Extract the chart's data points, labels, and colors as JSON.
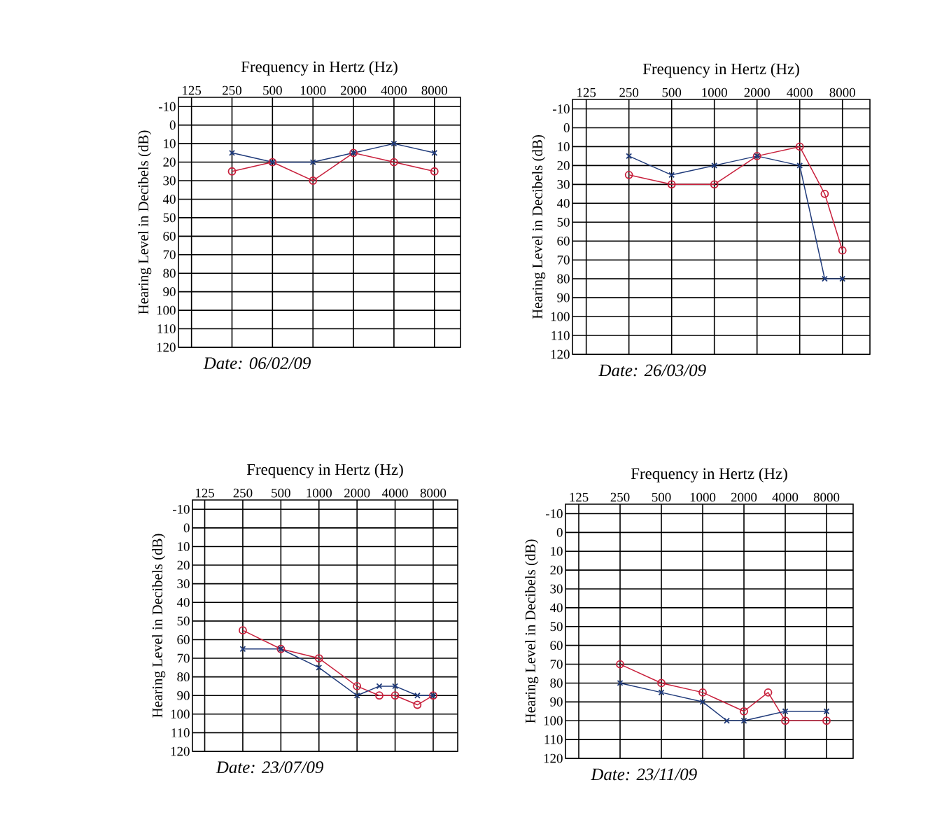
{
  "chart_data": [
    {
      "type": "line",
      "title": "Frequency in Hertz (Hz)",
      "ylabel": "Hearing Level in Decibels (dB)",
      "log": "x",
      "grid": true,
      "xlim": [
        100,
        12500
      ],
      "xticks": [
        125,
        250,
        500,
        1000,
        2000,
        4000,
        8000
      ],
      "ylim": [
        120,
        -15
      ],
      "yticks": [
        -10,
        0,
        10,
        20,
        30,
        40,
        50,
        60,
        70,
        80,
        90,
        100,
        110,
        120
      ],
      "annotations": [
        "Date: 06/02/09"
      ],
      "series": [
        {
          "color": "#c8203c",
          "marker": "circle",
          "x": [
            250,
            500,
            1000,
            2000,
            4000,
            8000
          ],
          "values": [
            25,
            20,
            30,
            15,
            20,
            25
          ]
        },
        {
          "color": "#1f3a7a",
          "marker": "cross",
          "x": [
            250,
            500,
            1000,
            2000,
            4000,
            8000
          ],
          "values": [
            15,
            20,
            20,
            15,
            10,
            15
          ]
        }
      ]
    },
    {
      "type": "line",
      "title": "Frequency in Hertz (Hz)",
      "ylabel": "Hearing Level in Decibels (dB)",
      "log": "x",
      "grid": true,
      "xlim": [
        100,
        12500
      ],
      "xticks": [
        125,
        250,
        500,
        1000,
        2000,
        4000,
        8000
      ],
      "ylim": [
        120,
        -15
      ],
      "yticks": [
        -10,
        0,
        10,
        20,
        30,
        40,
        50,
        60,
        70,
        80,
        90,
        100,
        110,
        120
      ],
      "annotations": [
        "Date: 26/03/09"
      ],
      "series": [
        {
          "color": "#c8203c",
          "marker": "circle",
          "x": [
            250,
            500,
            1000,
            2000,
            4000,
            6000,
            8000
          ],
          "values": [
            25,
            30,
            30,
            15,
            10,
            35,
            65
          ]
        },
        {
          "color": "#1f3a7a",
          "marker": "cross",
          "x": [
            250,
            500,
            1000,
            2000,
            4000,
            6000,
            8000
          ],
          "values": [
            15,
            25,
            20,
            15,
            20,
            80,
            80
          ]
        }
      ]
    },
    {
      "type": "line",
      "title": "Frequency in Hertz (Hz)",
      "ylabel": "Hearing Level in Decibels (dB)",
      "log": "x",
      "grid": true,
      "xlim": [
        100,
        12500
      ],
      "xticks": [
        125,
        250,
        500,
        1000,
        2000,
        4000,
        8000
      ],
      "ylim": [
        120,
        -15
      ],
      "yticks": [
        -10,
        0,
        10,
        20,
        30,
        40,
        50,
        60,
        70,
        80,
        90,
        100,
        110,
        120
      ],
      "annotations": [
        "Date: 23/07/09"
      ],
      "series": [
        {
          "color": "#c8203c",
          "marker": "circle",
          "x": [
            250,
            500,
            1000,
            2000,
            3000,
            4000,
            6000,
            8000
          ],
          "values": [
            55,
            65,
            70,
            85,
            90,
            90,
            95,
            90
          ]
        },
        {
          "color": "#1f3a7a",
          "marker": "cross",
          "x": [
            250,
            500,
            1000,
            2000,
            3000,
            4000,
            6000,
            8000
          ],
          "values": [
            65,
            65,
            75,
            90,
            85,
            85,
            90,
            90
          ]
        }
      ]
    },
    {
      "type": "line",
      "title": "Frequency in Hertz (Hz)",
      "ylabel": "Hearing Level in Decibels (dB)",
      "log": "x",
      "grid": true,
      "xlim": [
        100,
        12500
      ],
      "xticks": [
        125,
        250,
        500,
        1000,
        2000,
        4000,
        8000
      ],
      "ylim": [
        120,
        -15
      ],
      "yticks": [
        -10,
        0,
        10,
        20,
        30,
        40,
        50,
        60,
        70,
        80,
        90,
        100,
        110,
        120
      ],
      "annotations": [
        "Date: 23/11/09"
      ],
      "series": [
        {
          "color": "#c8203c",
          "marker": "circle",
          "x": [
            250,
            500,
            1000,
            2000,
            3000,
            4000,
            8000
          ],
          "values": [
            70,
            80,
            85,
            95,
            85,
            100,
            100
          ]
        },
        {
          "color": "#1f3a7a",
          "marker": "cross",
          "x": [
            250,
            500,
            1000,
            1500,
            2000,
            4000,
            8000
          ],
          "values": [
            80,
            85,
            90,
            100,
            100,
            95,
            95
          ]
        }
      ]
    }
  ]
}
